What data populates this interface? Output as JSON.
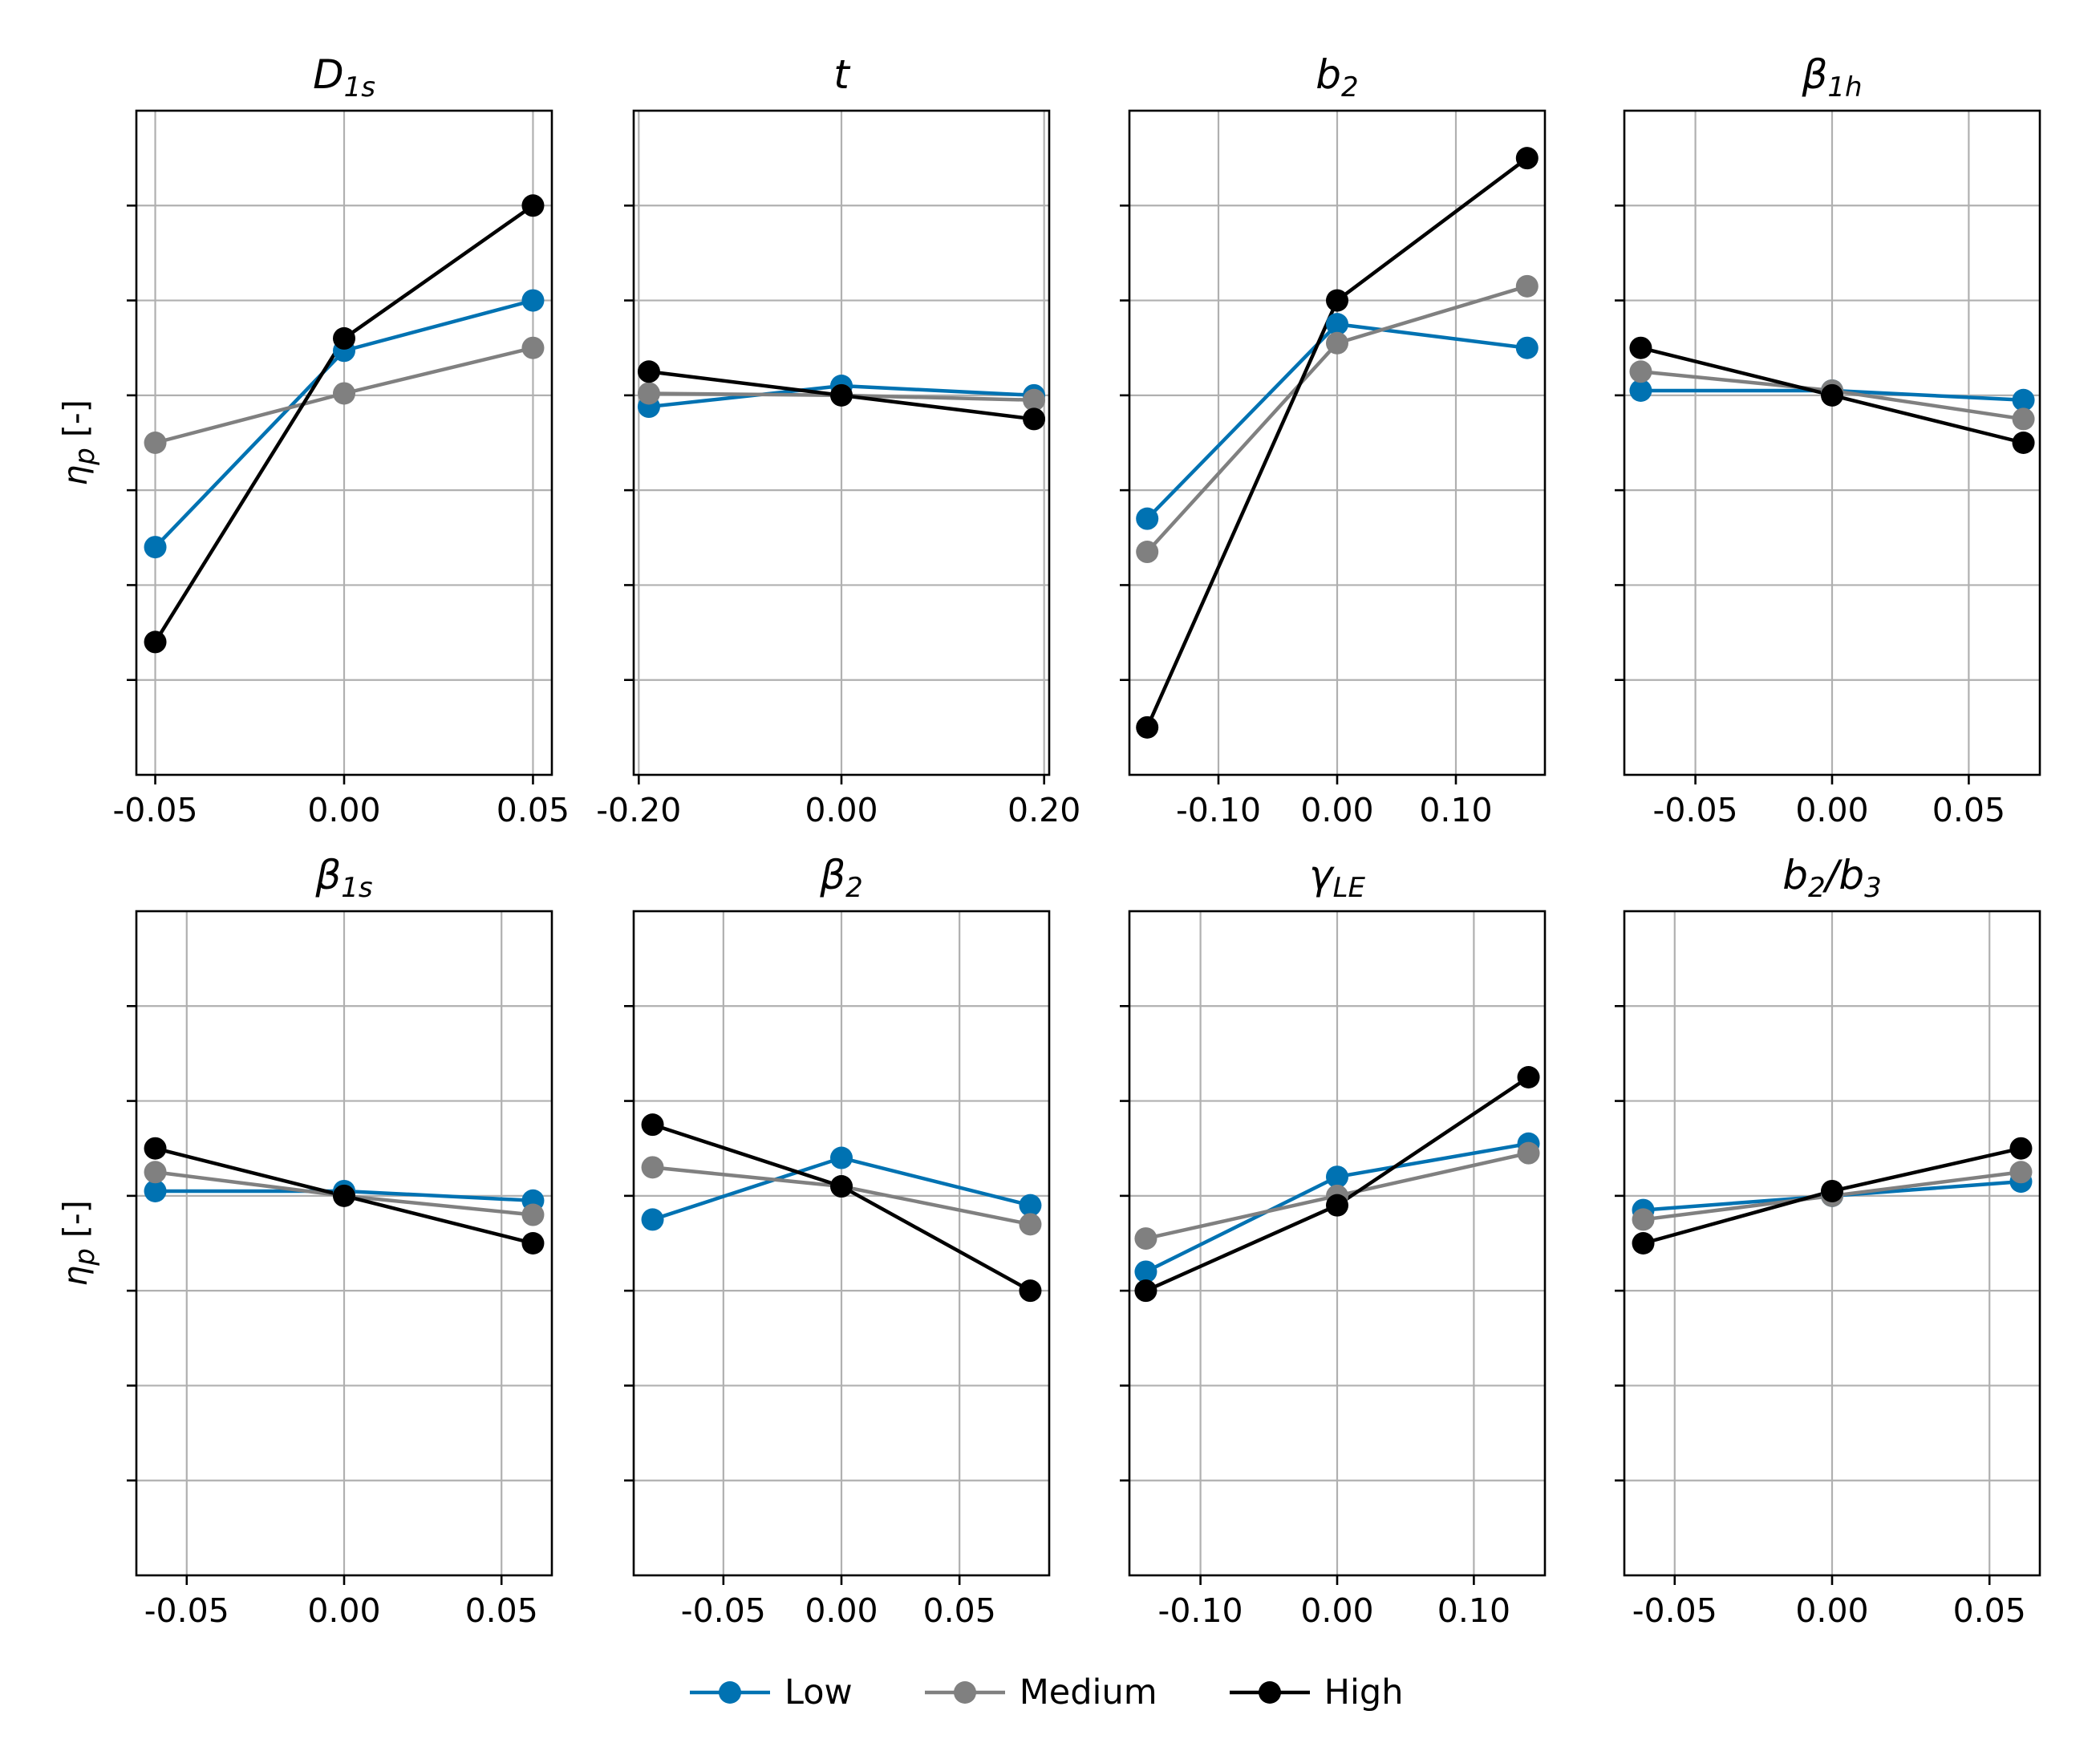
{
  "figure": {
    "ylabel": "η",
    "ylabel_sub": "p",
    "ylabel_unit": "[-]"
  },
  "legend": [
    {
      "name": "Low",
      "color": "#0072b2"
    },
    {
      "name": "Medium",
      "color": "#808080"
    },
    {
      "name": "High",
      "color": "#000000"
    }
  ],
  "chart_data": [
    {
      "type": "line",
      "title": "D1s",
      "title_base": "D",
      "title_sub": "1s",
      "title_sub_mode": "sub",
      "x": [
        -0.05,
        0,
        0.05
      ],
      "xlim": [
        -0.055,
        0.055
      ],
      "ylim": [
        0,
        7
      ],
      "xticks": [
        -0.05,
        0,
        0.05
      ],
      "xticklabels": [
        "-0.05",
        "0.00",
        "0.05"
      ],
      "series": [
        {
          "name": "Low",
          "color": "#0072b2",
          "values": [
            2.4,
            4.47,
            5.0
          ]
        },
        {
          "name": "Medium",
          "color": "#808080",
          "values": [
            3.5,
            4.02,
            4.5
          ]
        },
        {
          "name": "High",
          "color": "#000000",
          "values": [
            1.4,
            4.6,
            6.0
          ]
        }
      ]
    },
    {
      "type": "line",
      "title": "t",
      "title_base": "t",
      "title_sub": "",
      "title_sub_mode": "sub",
      "x": [
        -0.19,
        0,
        0.19
      ],
      "xlim": [
        -0.205,
        0.205
      ],
      "ylim": [
        0,
        7
      ],
      "xticks": [
        -0.2,
        0,
        0.2
      ],
      "xticklabels": [
        "-0.20",
        "0.00",
        "0.20"
      ],
      "series": [
        {
          "name": "Low",
          "color": "#0072b2",
          "values": [
            3.88,
            4.1,
            4.0
          ]
        },
        {
          "name": "Medium",
          "color": "#808080",
          "values": [
            4.02,
            4.0,
            3.95
          ]
        },
        {
          "name": "High",
          "color": "#000000",
          "values": [
            4.25,
            4.0,
            3.75
          ]
        }
      ]
    },
    {
      "type": "line",
      "title": "b2",
      "title_base": "b",
      "title_sub": "2",
      "title_sub_mode": "sub",
      "x": [
        -0.16,
        0,
        0.16
      ],
      "xlim": [
        -0.175,
        0.175
      ],
      "ylim": [
        0,
        7
      ],
      "xticks": [
        -0.1,
        0,
        0.1
      ],
      "xticklabels": [
        "-0.10",
        "0.00",
        "0.10"
      ],
      "series": [
        {
          "name": "Low",
          "color": "#0072b2",
          "values": [
            2.7,
            4.75,
            4.5
          ]
        },
        {
          "name": "Medium",
          "color": "#808080",
          "values": [
            2.35,
            4.55,
            5.15
          ]
        },
        {
          "name": "High",
          "color": "#000000",
          "values": [
            0.5,
            5.0,
            6.5
          ]
        }
      ]
    },
    {
      "type": "line",
      "title": "β1h",
      "title_base": "β",
      "title_sub": "1h",
      "title_sub_mode": "sub",
      "x": [
        -0.07,
        0,
        0.07
      ],
      "xlim": [
        -0.076,
        0.076
      ],
      "ylim": [
        0,
        7
      ],
      "xticks": [
        -0.05,
        0,
        0.05
      ],
      "xticklabels": [
        "-0.05",
        "0.00",
        "0.05"
      ],
      "series": [
        {
          "name": "Low",
          "color": "#0072b2",
          "values": [
            4.05,
            4.05,
            3.95
          ]
        },
        {
          "name": "Medium",
          "color": "#808080",
          "values": [
            4.25,
            4.05,
            3.75
          ]
        },
        {
          "name": "High",
          "color": "#000000",
          "values": [
            4.5,
            4.0,
            3.5
          ]
        }
      ]
    },
    {
      "type": "line",
      "title": "β1s",
      "title_base": "β",
      "title_sub": "1s",
      "title_sub_mode": "sub",
      "x": [
        -0.06,
        0,
        0.06
      ],
      "xlim": [
        -0.066,
        0.066
      ],
      "ylim": [
        0,
        7
      ],
      "xticks": [
        -0.05,
        0,
        0.05
      ],
      "xticklabels": [
        "-0.05",
        "0.00",
        "0.05"
      ],
      "series": [
        {
          "name": "Low",
          "color": "#0072b2",
          "values": [
            4.05,
            4.05,
            3.95
          ]
        },
        {
          "name": "Medium",
          "color": "#808080",
          "values": [
            4.25,
            4.0,
            3.8
          ]
        },
        {
          "name": "High",
          "color": "#000000",
          "values": [
            4.5,
            4.0,
            3.5
          ]
        }
      ]
    },
    {
      "type": "line",
      "title": "β2",
      "title_base": "β",
      "title_sub": "2",
      "title_sub_mode": "sub",
      "x": [
        -0.08,
        0,
        0.08
      ],
      "xlim": [
        -0.088,
        0.088
      ],
      "ylim": [
        0,
        7
      ],
      "xticks": [
        -0.05,
        0,
        0.05
      ],
      "xticklabels": [
        "-0.05",
        "0.00",
        "0.05"
      ],
      "series": [
        {
          "name": "Low",
          "color": "#0072b2",
          "values": [
            3.75,
            4.4,
            3.9
          ]
        },
        {
          "name": "Medium",
          "color": "#808080",
          "values": [
            4.3,
            4.1,
            3.7
          ]
        },
        {
          "name": "High",
          "color": "#000000",
          "values": [
            4.75,
            4.1,
            3.0
          ]
        }
      ]
    },
    {
      "type": "line",
      "title": "γLE",
      "title_base": "γ",
      "title_sub": "LE",
      "title_sub_mode": "sub",
      "x": [
        -0.14,
        0,
        0.14
      ],
      "xlim": [
        -0.152,
        0.152
      ],
      "ylim": [
        0,
        7
      ],
      "xticks": [
        -0.1,
        0,
        0.1
      ],
      "xticklabels": [
        "-0.10",
        "0.00",
        "0.10"
      ],
      "series": [
        {
          "name": "Low",
          "color": "#0072b2",
          "values": [
            3.2,
            4.2,
            4.55
          ]
        },
        {
          "name": "Medium",
          "color": "#808080",
          "values": [
            3.55,
            4.0,
            4.45
          ]
        },
        {
          "name": "High",
          "color": "#000000",
          "values": [
            3.0,
            3.9,
            5.25
          ]
        }
      ]
    },
    {
      "type": "line",
      "title": "b2/b3",
      "title_base": "b",
      "title_sub": "2",
      "title_mid": "/b",
      "title_sub2": "3",
      "title_sub_mode": "ratio",
      "x": [
        -0.06,
        0,
        0.06
      ],
      "xlim": [
        -0.066,
        0.066
      ],
      "ylim": [
        0,
        7
      ],
      "xticks": [
        -0.05,
        0,
        0.05
      ],
      "xticklabels": [
        "-0.05",
        "0.00",
        "0.05"
      ],
      "series": [
        {
          "name": "Low",
          "color": "#0072b2",
          "values": [
            3.85,
            4.0,
            4.15
          ]
        },
        {
          "name": "Medium",
          "color": "#808080",
          "values": [
            3.75,
            4.0,
            4.25
          ]
        },
        {
          "name": "High",
          "color": "#000000",
          "values": [
            3.5,
            4.05,
            4.5
          ]
        }
      ]
    }
  ]
}
